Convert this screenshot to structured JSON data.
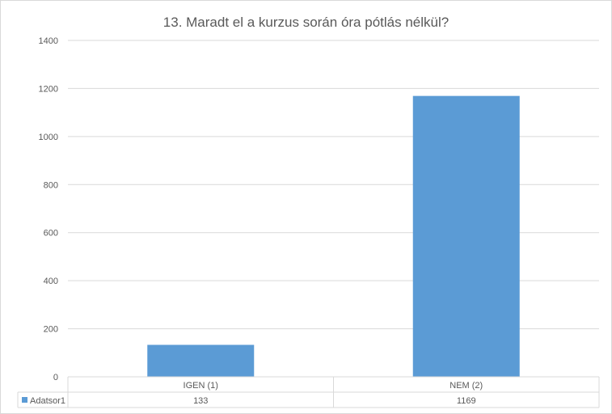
{
  "chart_data": {
    "type": "bar",
    "title": "13. Maradt el a kurzus során óra pótlás nélkül?",
    "categories": [
      "IGEN (1)",
      "NEM (2)"
    ],
    "series": [
      {
        "name": "Adatsor1",
        "values": [
          133,
          1169
        ],
        "color": "#5b9bd5"
      }
    ],
    "ylim": [
      0,
      1400
    ],
    "yticks": [
      0,
      200,
      400,
      600,
      800,
      1000,
      1200,
      1400
    ],
    "grid": true,
    "data_table": true,
    "gridline_color": "#d9d9d9"
  }
}
